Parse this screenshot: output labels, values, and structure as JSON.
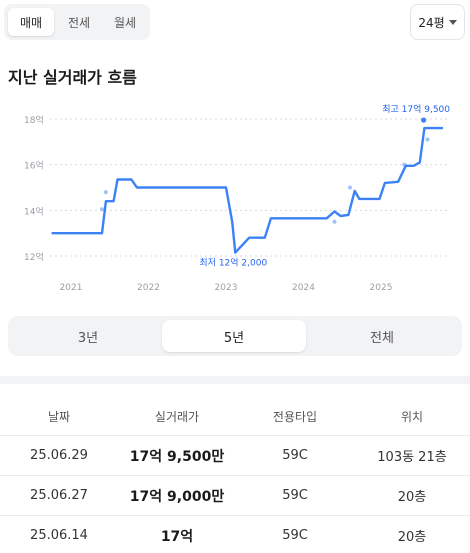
{
  "top": {
    "tabs": [
      {
        "label": "매매",
        "active": true
      },
      {
        "label": "전세",
        "active": false
      },
      {
        "label": "월세",
        "active": false
      }
    ],
    "pyeong_label": "24평"
  },
  "section_title": "지난 실거래가 흐름",
  "chart_data": {
    "type": "line",
    "title": "",
    "xlabel": "",
    "ylabel": "",
    "x_ticks": [
      "2021",
      "2022",
      "2023",
      "2024",
      "2025"
    ],
    "y_ticks": [
      "12억",
      "14억",
      "16억",
      "18억"
    ],
    "ylim": [
      12,
      18
    ],
    "grid": true,
    "series": [
      {
        "values": [
          [
            2020.75,
            13.0
          ],
          [
            2021.4,
            13.0
          ],
          [
            2021.45,
            14.4
          ],
          [
            2021.55,
            14.4
          ],
          [
            2021.6,
            15.35
          ],
          [
            2021.78,
            15.35
          ],
          [
            2021.85,
            15.0
          ],
          [
            2023.0,
            15.0
          ],
          [
            2023.08,
            13.5
          ],
          [
            2023.12,
            12.15
          ],
          [
            2023.3,
            12.8
          ],
          [
            2023.5,
            12.8
          ],
          [
            2023.58,
            13.65
          ],
          [
            2024.0,
            13.65
          ],
          [
            2024.3,
            13.65
          ],
          [
            2024.4,
            13.95
          ],
          [
            2024.48,
            13.75
          ],
          [
            2024.58,
            13.8
          ],
          [
            2024.66,
            14.85
          ],
          [
            2024.72,
            14.5
          ],
          [
            2024.98,
            14.5
          ],
          [
            2025.05,
            15.2
          ],
          [
            2025.22,
            15.25
          ],
          [
            2025.32,
            15.95
          ],
          [
            2025.42,
            15.95
          ],
          [
            2025.5,
            16.1
          ],
          [
            2025.56,
            17.6
          ],
          [
            2025.8,
            17.6
          ]
        ]
      }
    ],
    "scatter_points": [
      [
        2021.4,
        14.05
      ],
      [
        2021.45,
        14.8
      ],
      [
        2024.4,
        13.5
      ],
      [
        2024.6,
        15.0
      ],
      [
        2025.3,
        16.0
      ],
      [
        2025.55,
        17.95
      ],
      [
        2025.6,
        17.1
      ]
    ],
    "annotations": {
      "max_label": "최고 17억 9,500",
      "min_label": "최저 12억 2,000",
      "max_point": [
        2025.55,
        17.95
      ],
      "min_point": [
        2023.12,
        12.2
      ]
    },
    "colors": {
      "line": "#3b82f6",
      "point": "#9fc2f7",
      "grid": "#d6d9dd",
      "tick": "#9aa0a6"
    }
  },
  "period": {
    "options": [
      {
        "label": "3년",
        "active": false
      },
      {
        "label": "5년",
        "active": true
      },
      {
        "label": "전체",
        "active": false
      }
    ]
  },
  "table": {
    "headers": [
      "날짜",
      "실거래가",
      "전용타입",
      "위치"
    ],
    "rows": [
      {
        "date": "25.06.29",
        "price": "17억 9,500만",
        "type": "59C",
        "location": "103동 21층"
      },
      {
        "date": "25.06.27",
        "price": "17억 9,000만",
        "type": "59C",
        "location": "20층"
      },
      {
        "date": "25.06.14",
        "price": "17억",
        "type": "59C",
        "location": "20층"
      }
    ]
  }
}
